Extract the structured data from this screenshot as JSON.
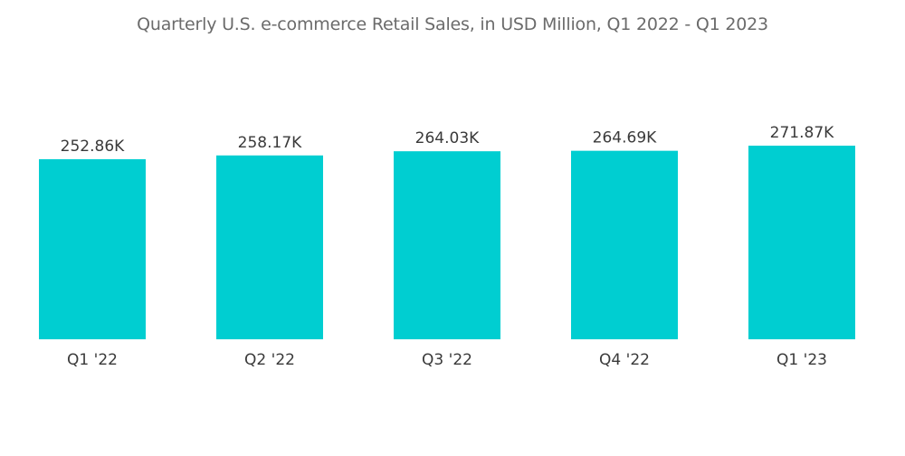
{
  "chart_data": {
    "type": "bar",
    "title": "Quarterly U.S. e-commerce Retail Sales, in USD Million, Q1 2022 - Q1 2023",
    "categories": [
      "Q1 '22",
      "Q2 '22",
      "Q3 '22",
      "Q4 '22",
      "Q1 '23"
    ],
    "values": [
      252860,
      258170,
      264030,
      264690,
      271870
    ],
    "value_labels": [
      "252.86K",
      "258.17K",
      "264.03K",
      "264.69K",
      "271.87K"
    ],
    "xlabel": "",
    "ylabel": "",
    "ylim": [
      0,
      271870
    ],
    "grid": false,
    "legend": "none",
    "bar_color": "#00CED1"
  }
}
